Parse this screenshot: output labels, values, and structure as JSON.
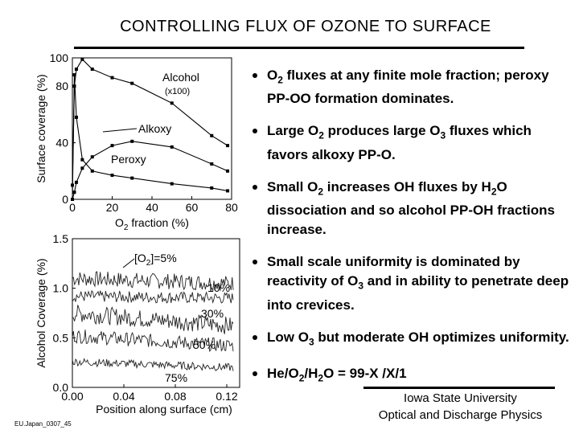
{
  "title": "CONTROLLING FLUX OF OZONE TO SURFACE",
  "bullets": [
    [
      "O",
      {
        "sub": "2"
      },
      " fluxes at any finite  mole fraction; peroxy PP-OO formation dominates."
    ],
    [
      "Large O",
      {
        "sub": "2"
      },
      " produces large O",
      {
        "sub": "3"
      },
      " fluxes which favors alkoxy PP-O."
    ],
    [
      "Small O",
      {
        "sub": "2"
      },
      " increases OH fluxes by H",
      {
        "sub": "2"
      },
      "O dissociation and so alcohol PP-OH fractions increase."
    ],
    [
      "Small scale uniformity is dominated by reactivity of O",
      {
        "sub": "3"
      },
      " and in ability to penetrate deep into crevices."
    ],
    [
      "Low O",
      {
        "sub": "3"
      },
      " but moderate OH optimizes uniformity."
    ],
    [
      "He/O",
      {
        "sub": "2"
      },
      "/H",
      {
        "sub": "2"
      },
      "O = 99-X /X/1"
    ]
  ],
  "affiliation": {
    "line1": "Iowa State University",
    "line2": "Optical and Discharge Physics"
  },
  "footer": "EU.Japan_0307_45",
  "chart_data": [
    {
      "type": "line",
      "xlabel": "O2 fraction (%)",
      "ylabel": "Surface coverage (%)",
      "xlim": [
        0,
        80
      ],
      "ylim": [
        0,
        100
      ],
      "xticks": [
        0,
        20,
        40,
        60,
        80
      ],
      "yticks": [
        0,
        40,
        80,
        100
      ],
      "series": [
        {
          "name": "Alcohol",
          "note": "(x100)",
          "x": [
            0,
            1,
            2,
            5,
            10,
            20,
            30,
            50,
            70,
            78
          ],
          "y": [
            10,
            80,
            92,
            99,
            92,
            86,
            82,
            68,
            45,
            38
          ]
        },
        {
          "name": "Alkoxy",
          "x": [
            0,
            1,
            2,
            5,
            10,
            20,
            30,
            50,
            70,
            78
          ],
          "y": [
            0,
            5,
            12,
            22,
            30,
            38,
            41,
            37,
            25,
            20
          ]
        },
        {
          "name": "Peroxy",
          "x": [
            0,
            1,
            2,
            5,
            10,
            20,
            30,
            50,
            70,
            78
          ],
          "y": [
            0,
            88,
            58,
            28,
            20,
            17,
            15,
            11,
            8,
            6
          ]
        }
      ]
    },
    {
      "type": "line",
      "xlabel": "Position along surface (cm)",
      "ylabel": "Alcohol Coverage (%)",
      "xlim": [
        0,
        0.13
      ],
      "ylim": [
        0,
        1.5
      ],
      "xticks": [
        "0.00",
        "0.04",
        "0.08",
        "0.12"
      ],
      "yticks": [
        "0.0",
        "0.5",
        "1.0",
        "1.5"
      ],
      "legend_title": "[O2]=5%",
      "series": [
        {
          "name": "5%",
          "level": [
            1.1,
            1.05
          ],
          "noise": 0.08
        },
        {
          "name": "10%",
          "level": [
            0.92,
            0.9
          ],
          "noise": 0.06
        },
        {
          "name": "30%",
          "level": [
            0.75,
            0.62
          ],
          "noise": 0.09
        },
        {
          "name": "50%",
          "level": [
            0.52,
            0.42
          ],
          "noise": 0.07
        },
        {
          "name": "75%",
          "level": [
            0.26,
            0.2
          ],
          "noise": 0.04
        }
      ]
    }
  ]
}
